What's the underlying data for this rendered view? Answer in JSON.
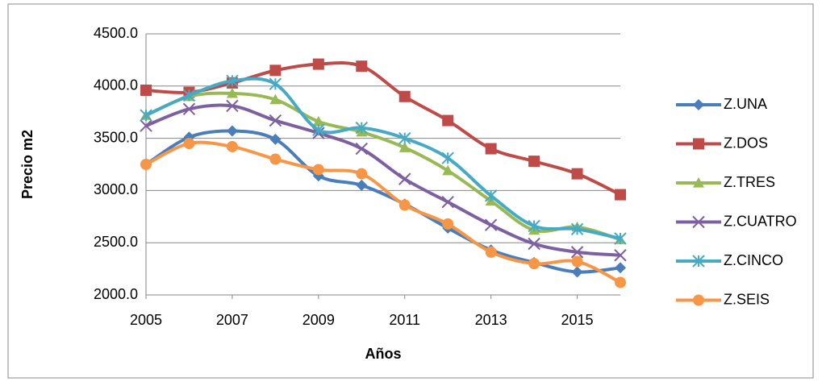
{
  "chart_data": {
    "type": "line",
    "x_label": "Años",
    "y_label": "Precio m2",
    "xlim": [
      2005,
      2016
    ],
    "xticks": [
      2005,
      2007,
      2009,
      2011,
      2013,
      2015
    ],
    "ylim": [
      2000,
      4500
    ],
    "yticks": [
      {
        "value": 2000,
        "label": "2000.0"
      },
      {
        "value": 2500,
        "label": "2500.0"
      },
      {
        "value": 3000,
        "label": "3000.0"
      },
      {
        "value": 3500,
        "label": "3500.0"
      },
      {
        "value": 4000,
        "label": "4000.0"
      },
      {
        "value": 4500,
        "label": "4500.0"
      }
    ],
    "grid": true,
    "smooth": true,
    "legend": "right",
    "x": [
      2005,
      2006,
      2007,
      2008,
      2009,
      2010,
      2011,
      2012,
      2013,
      2014,
      2015,
      2016
    ],
    "series": [
      {
        "name": "Z.UNA",
        "color": "#4a7ebb",
        "marker": "diamond",
        "values": [
          3250,
          3510,
          3570,
          3490,
          3140,
          3050,
          2870,
          2640,
          2430,
          2310,
          2220,
          2260
        ]
      },
      {
        "name": "Z.DOS",
        "color": "#be4b48",
        "marker": "square",
        "values": [
          3960,
          3940,
          4030,
          4150,
          4210,
          4190,
          3900,
          3670,
          3400,
          3280,
          3160,
          2960
        ]
      },
      {
        "name": "Z.TRES",
        "color": "#98b954",
        "marker": "triangle",
        "values": [
          3720,
          3900,
          3930,
          3870,
          3660,
          3560,
          3410,
          3190,
          2900,
          2620,
          2650,
          2530
        ]
      },
      {
        "name": "Z.CUATRO",
        "color": "#7d60a0",
        "marker": "x",
        "values": [
          3620,
          3780,
          3810,
          3670,
          3550,
          3400,
          3110,
          2890,
          2670,
          2490,
          2410,
          2380
        ]
      },
      {
        "name": "Z.CINCO",
        "color": "#46aac5",
        "marker": "star",
        "values": [
          3720,
          3910,
          4050,
          4020,
          3580,
          3600,
          3500,
          3310,
          2950,
          2660,
          2630,
          2540
        ]
      },
      {
        "name": "Z.SEIS",
        "color": "#f79646",
        "marker": "circle",
        "values": [
          3250,
          3450,
          3420,
          3300,
          3200,
          3160,
          2860,
          2680,
          2410,
          2300,
          2320,
          2120
        ]
      }
    ]
  }
}
